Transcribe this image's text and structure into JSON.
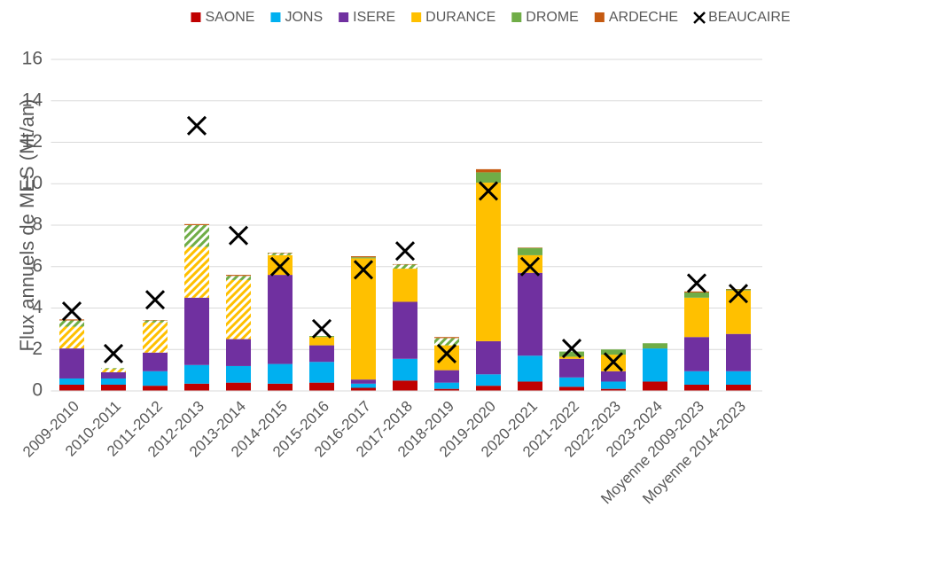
{
  "chart_data": {
    "type": "stacked_bar",
    "y_label": "Flux annuels de MES (Mt/an)",
    "categories": [
      "2009-2010",
      "2010-2011",
      "2011-2012",
      "2012-2013",
      "2013-2014",
      "2014-2015",
      "2015-2016",
      "2016-2017",
      "2017-2018",
      "2018-2019",
      "2019-2020",
      "2020-2021",
      "2021-2022",
      "2022-2023",
      "2023-2024",
      "Moyenne 2009-2023",
      "Moyenne 2014-2023"
    ],
    "series": [
      {
        "name": "SAONE",
        "color": "#c00000",
        "values": [
          0.3,
          0.3,
          0.25,
          0.35,
          0.4,
          0.35,
          0.4,
          0.15,
          0.5,
          0.1,
          0.25,
          0.45,
          0.2,
          0.1,
          0.45,
          0.3,
          0.3
        ]
      },
      {
        "name": "JONS",
        "color": "#00b0f0",
        "values": [
          0.3,
          0.3,
          0.7,
          0.9,
          0.8,
          0.95,
          1.0,
          0.2,
          1.05,
          0.3,
          0.55,
          1.25,
          0.45,
          0.35,
          1.6,
          0.65,
          0.65
        ]
      },
      {
        "name": "ISERE",
        "color": "#7030a0",
        "values": [
          1.45,
          0.3,
          0.9,
          3.25,
          1.3,
          4.3,
          0.8,
          0.2,
          2.75,
          0.6,
          1.6,
          4.0,
          0.9,
          0.5,
          0,
          1.65,
          1.8
        ]
      },
      {
        "name": "DURANCE",
        "color": "#ffc000",
        "values": [
          1.05,
          0.15,
          1.45,
          2.45,
          2.85,
          0.95,
          0.4,
          5.85,
          1.6,
          1.2,
          7.65,
          0.85,
          0.1,
          0.8,
          0,
          1.9,
          2.1
        ],
        "hatched": [
          true,
          true,
          true,
          true,
          true,
          false,
          false,
          false,
          false,
          false,
          false,
          false,
          false,
          false,
          false,
          false,
          false
        ]
      },
      {
        "name": "DROME",
        "color": "#70ad47",
        "values": [
          0.3,
          0.05,
          0.1,
          1.05,
          0.2,
          0.1,
          0.05,
          0.05,
          0.2,
          0.35,
          0.5,
          0.35,
          0.25,
          0.25,
          0.25,
          0.25,
          0.05
        ],
        "hatched": [
          true,
          true,
          true,
          true,
          true,
          true,
          false,
          false,
          true,
          true,
          false,
          false,
          false,
          false,
          false,
          false,
          false
        ]
      },
      {
        "name": "ARDECHE",
        "color": "#c55a11",
        "values": [
          0.05,
          0,
          0.02,
          0.05,
          0.05,
          0.02,
          0,
          0.05,
          0.02,
          0.05,
          0.15,
          0.02,
          0,
          0,
          0,
          0.05,
          0.02
        ]
      }
    ],
    "marker_series": {
      "name": "BEAUCAIRE",
      "color": "#000000",
      "values": [
        3.85,
        1.8,
        4.4,
        12.8,
        7.5,
        6.0,
        3.0,
        5.85,
        6.75,
        1.8,
        9.65,
        6.0,
        2.05,
        1.4,
        null,
        5.2,
        4.7
      ]
    },
    "ylim": [
      0,
      16
    ],
    "yticks": [
      0,
      2,
      4,
      6,
      8,
      10,
      12,
      14,
      16
    ],
    "grid": true,
    "legend": "top"
  }
}
